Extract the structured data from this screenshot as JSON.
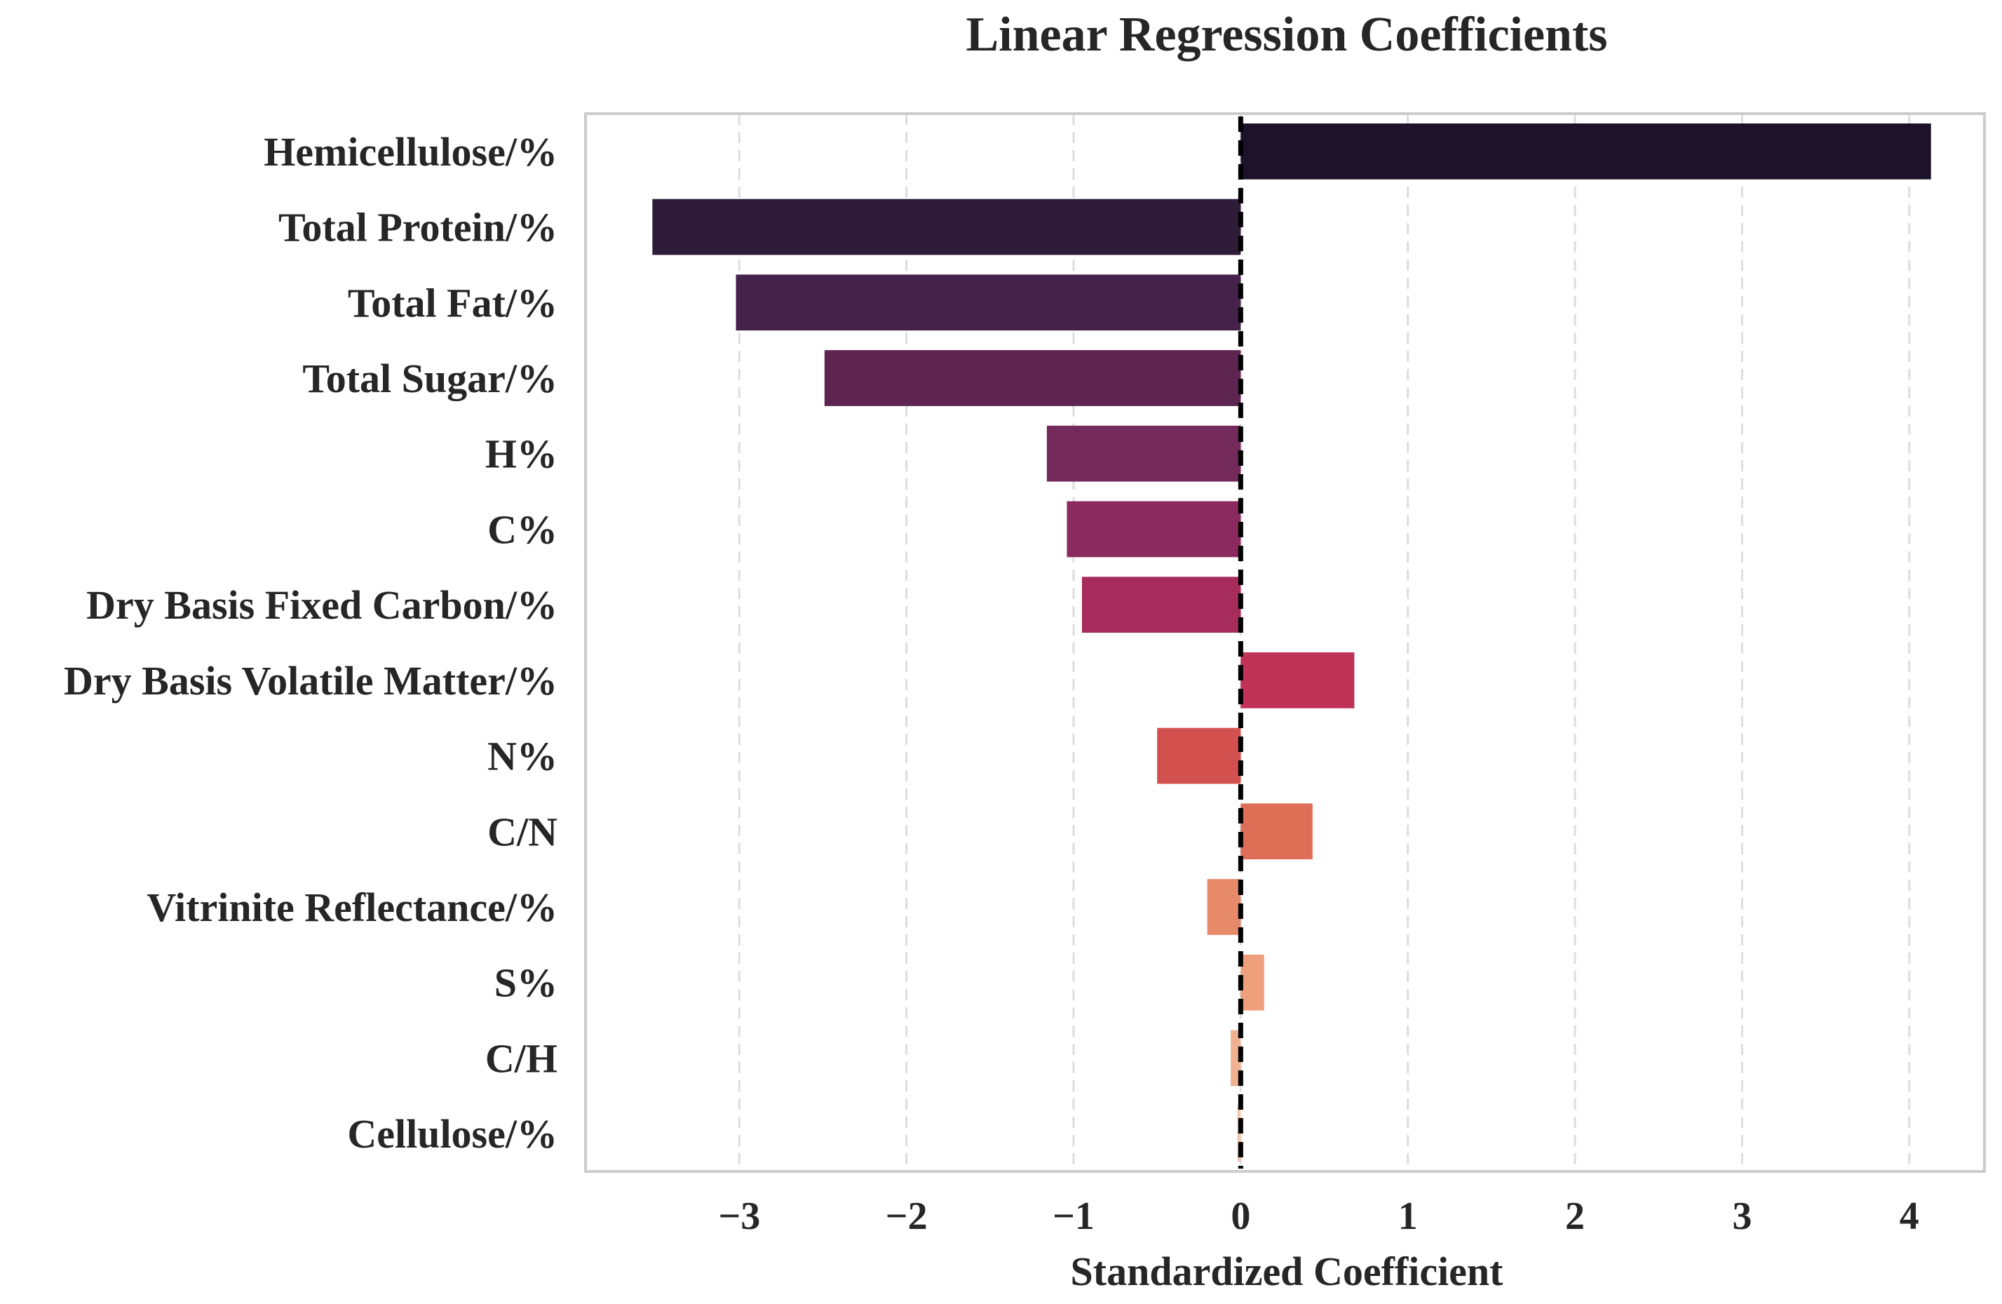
{
  "chart_data": {
    "type": "bar",
    "orientation": "horizontal",
    "title": "Linear Regression Coefficients",
    "xlabel": "Standardized Coefficient",
    "ylabel": "",
    "xlim": [
      -3.92,
      4.45
    ],
    "xticks": [
      -3,
      -2,
      -1,
      0,
      1,
      2,
      3,
      4
    ],
    "xtick_labels": [
      "−3",
      "−2",
      "−1",
      "0",
      "1",
      "2",
      "3",
      "4"
    ],
    "grid": "vertical dashed",
    "reference_line": {
      "x": 0,
      "style": "dashed",
      "color": "#000000"
    },
    "categories": [
      "Hemicellulose/%",
      "Total Protein/%",
      "Total Fat/%",
      "Total Sugar/%",
      "H%",
      "C%",
      "Dry Basis Fixed Carbon/%",
      "Dry Basis Volatile Matter/%",
      "N%",
      "C/N",
      "Vitrinite Reflectance/%",
      "S%",
      "C/H",
      "Cellulose/%"
    ],
    "values": [
      4.13,
      -3.52,
      -3.02,
      -2.49,
      -1.16,
      -1.04,
      -0.95,
      0.68,
      -0.5,
      0.43,
      -0.2,
      0.14,
      -0.06,
      -0.02
    ],
    "colors": [
      "#1c1229",
      "#2f1c39",
      "#45224a",
      "#5e2550",
      "#742a5b",
      "#8b2a5e",
      "#a62c5b",
      "#c13356",
      "#d2504e",
      "#df6e57",
      "#e78a6a",
      "#ee9f7c",
      "#f0b190",
      "#f3c7aa"
    ]
  }
}
